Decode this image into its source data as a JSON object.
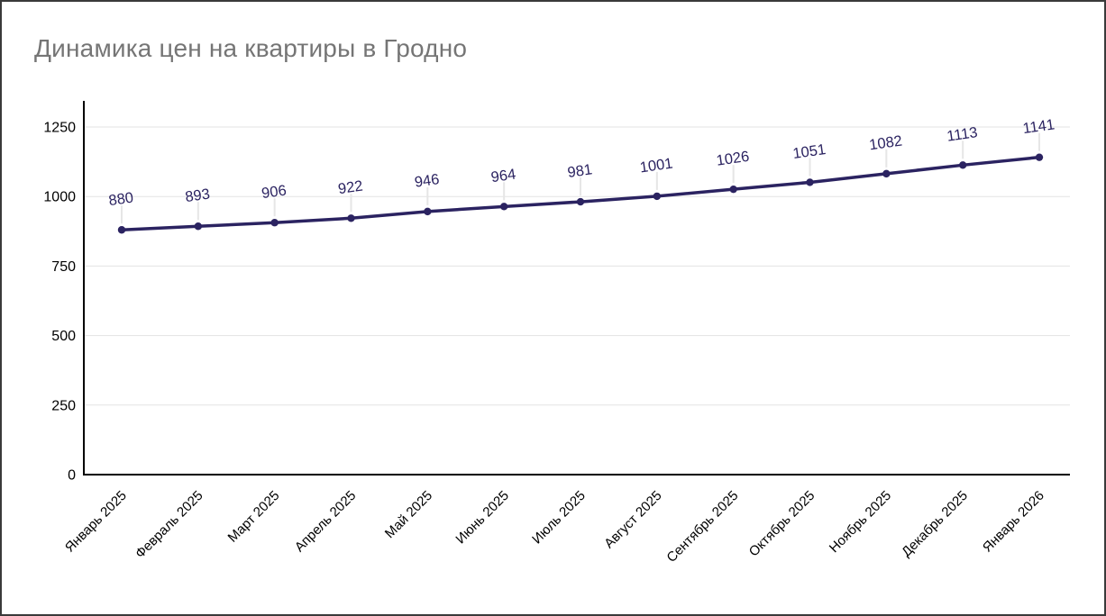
{
  "window": {
    "border_color": "#3a3a3a",
    "background": "#ffffff"
  },
  "chart_data": {
    "type": "line",
    "title": "Динамика цен на квартиры в Гродно",
    "categories": [
      "Январь 2025",
      "Февраль 2025",
      "Март 2025",
      "Апрель 2025",
      "Май 2025",
      "Июнь 2025",
      "Июль 2025",
      "Август 2025",
      "Сентябрь 2025",
      "Октябрь 2025",
      "Ноябрь 2025",
      "Декабрь 2025",
      "Январь 2026"
    ],
    "values": [
      880,
      893,
      906,
      922,
      946,
      964,
      981,
      1001,
      1026,
      1051,
      1082,
      1113,
      1141
    ],
    "data_labels_shown": true,
    "xlabel": "",
    "ylabel": "",
    "ylim": [
      0,
      1350
    ],
    "yticks": [
      0,
      250,
      500,
      750,
      1000,
      1250
    ],
    "grid": "horizontal",
    "legend": "none",
    "colors": {
      "line": "#2b2361",
      "point": "#2b2361",
      "value_label": "#2b2361",
      "title": "#757575",
      "axis_text": "#000000",
      "axis_line": "#000000",
      "gridline": "#e3e3e3",
      "label_stem": "#e6e6e6"
    }
  }
}
